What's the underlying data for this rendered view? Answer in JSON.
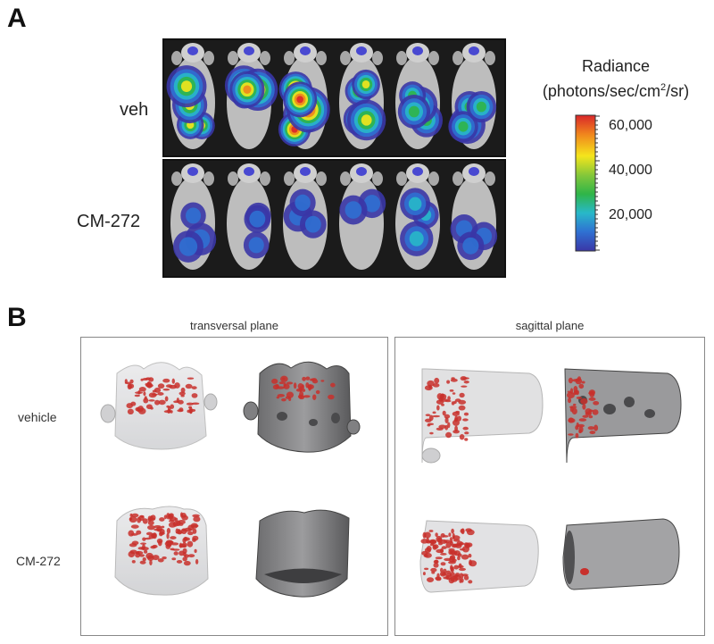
{
  "panel_a": {
    "letter": "A",
    "row_labels": [
      "veh",
      "CM-272"
    ],
    "legend": {
      "title_line1": "Radiance",
      "title_line2_pre": "(photons/sec/cm",
      "title_line2_sup": "2",
      "title_line2_post": "/sr)",
      "tick_labels": [
        "60,000",
        "40,000",
        "20,000"
      ],
      "tick_values": [
        60000,
        40000,
        20000
      ],
      "colors": [
        "#d8262a",
        "#f08a1e",
        "#f4e61a",
        "#7cc63a",
        "#2fb64a",
        "#27b7c8",
        "#2f6fd0",
        "#3a3aa8"
      ]
    },
    "veh_intensity": [
      0.75,
      0.85,
      0.95,
      0.7,
      0.5,
      0.55
    ],
    "cm272_intensity": [
      0.3,
      0.25,
      0.2,
      0.15,
      0.45,
      0.2
    ]
  },
  "panel_b": {
    "letter": "B",
    "titles": [
      "transversal plane",
      "sagittal plane"
    ],
    "row_labels": [
      "vehicle",
      "CM-272"
    ]
  }
}
